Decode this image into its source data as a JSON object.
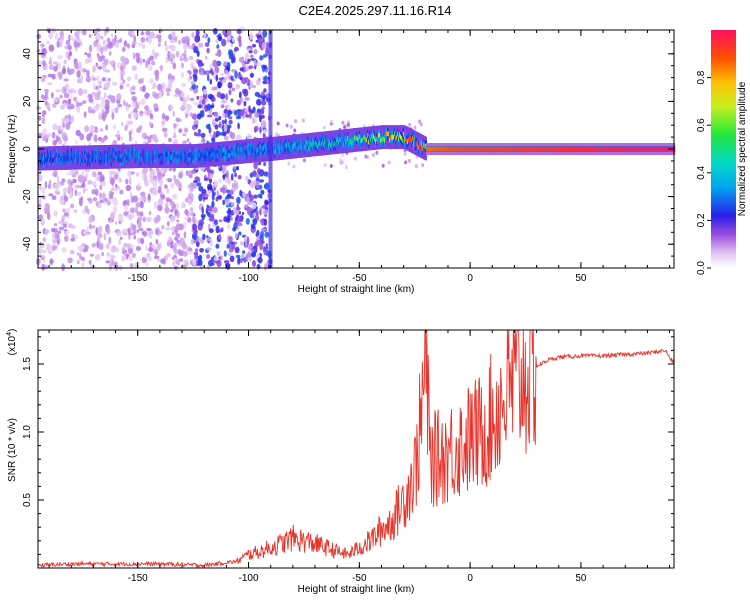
{
  "chart_data": [
    {
      "type": "heatmap",
      "title": "C2E4.2025.297.11.16.R14",
      "xlabel": "Height of straight line (km)",
      "ylabel": "Frequency (Hz)",
      "xlim": [
        -195,
        92
      ],
      "ylim": [
        -50,
        50
      ],
      "xticks": [
        -150,
        -100,
        -50,
        0,
        50
      ],
      "xtick_labels": [
        "-150",
        "-100",
        "-50",
        "0",
        "50"
      ],
      "yticks": [
        -40,
        -20,
        0,
        20,
        40
      ],
      "ytick_labels": [
        "-40",
        "-20",
        "0",
        "20",
        "40"
      ],
      "colorbar": {
        "label": "Normalized spectral amplitude",
        "range": [
          0,
          1
        ],
        "ticks": [
          0.0,
          0.2,
          0.4,
          0.6,
          0.8
        ],
        "tick_labels": [
          "0.0",
          "0.2",
          "0.4",
          "0.6",
          "0.8"
        ]
      },
      "ridge": {
        "description_points": [
          {
            "x": -195,
            "freq": -4,
            "amp": 0.25
          },
          {
            "x": -150,
            "freq": -3,
            "amp": 0.3
          },
          {
            "x": -125,
            "freq": -3,
            "amp": 0.3
          },
          {
            "x": -90,
            "freq": 0,
            "amp": 0.35
          },
          {
            "x": -60,
            "freq": 3,
            "amp": 0.45
          },
          {
            "x": -40,
            "freq": 5,
            "amp": 0.7
          },
          {
            "x": -30,
            "freq": 5,
            "amp": 0.85
          },
          {
            "x": -20,
            "freq": 0,
            "amp": 0.85
          },
          {
            "x": 0,
            "freq": 0,
            "amp": 0.9
          },
          {
            "x": 92,
            "freq": 0,
            "amp": 1.0
          }
        ]
      }
    },
    {
      "type": "line",
      "title": "",
      "xlabel": "Height of straight line (km)",
      "ylabel": "SNR (10 * v/v)",
      "y_scale_label": "(x10",
      "y_scale_exp": "4",
      "y_scale_close": ")",
      "xlim": [
        -195,
        92
      ],
      "ylim": [
        0,
        1.75
      ],
      "xticks": [
        -150,
        -100,
        -50,
        0,
        50
      ],
      "xtick_labels": [
        "-150",
        "-100",
        "-50",
        "0",
        "50"
      ],
      "yticks": [
        0.5,
        1.0,
        1.5
      ],
      "ytick_labels": [
        "0.5",
        "1.0",
        "1.5"
      ],
      "series": [
        {
          "name": "SNR",
          "color": "#e8332a",
          "x": [
            -195,
            -180,
            -160,
            -140,
            -120,
            -105,
            -100,
            -95,
            -90,
            -85,
            -80,
            -75,
            -70,
            -65,
            -60,
            -55,
            -50,
            -45,
            -40,
            -35,
            -30,
            -25,
            -22,
            -20,
            -18,
            -15,
            -10,
            -5,
            0,
            5,
            10,
            15,
            20,
            25,
            30,
            35,
            40,
            50,
            60,
            70,
            80,
            88,
            92
          ],
          "y": [
            0.02,
            0.03,
            0.03,
            0.03,
            0.02,
            0.05,
            0.1,
            0.12,
            0.15,
            0.18,
            0.22,
            0.2,
            0.18,
            0.15,
            0.12,
            0.1,
            0.15,
            0.2,
            0.28,
            0.35,
            0.5,
            0.7,
            1.1,
            1.55,
            0.8,
            0.8,
            0.85,
            0.9,
            0.95,
            1.0,
            1.1,
            1.25,
            1.35,
            1.42,
            1.48,
            1.53,
            1.55,
            1.56,
            1.56,
            1.57,
            1.58,
            1.6,
            1.5
          ]
        }
      ]
    }
  ]
}
